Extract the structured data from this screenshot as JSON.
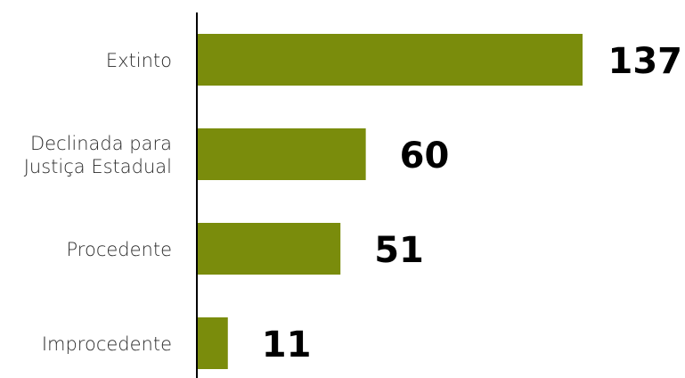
{
  "chart_data": {
    "type": "bar",
    "orientation": "horizontal",
    "categories": [
      [
        "Extinto"
      ],
      [
        "Declinada para",
        "Justiça Estadual"
      ],
      [
        "Procedente"
      ],
      [
        "Improcedente"
      ]
    ],
    "values": [
      137,
      60,
      51,
      11
    ],
    "value_labels": [
      "137",
      "60",
      "51",
      "11"
    ],
    "title": "",
    "xlabel": "",
    "ylabel": "",
    "xlim": [
      0,
      137
    ],
    "grid": false,
    "legend": "none",
    "colors": {
      "bar": "#7a8c0c",
      "axis": "#000000",
      "category_text": "#2b2b2b",
      "value_text": "#000000"
    }
  }
}
